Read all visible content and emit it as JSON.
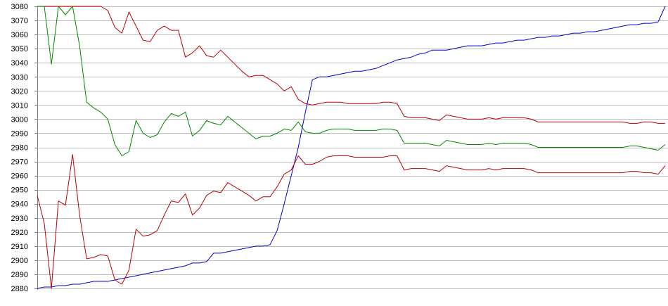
{
  "chart_data": {
    "type": "line",
    "title": "",
    "xlabel": "",
    "ylabel": "",
    "ylim": [
      2880,
      3080
    ],
    "yticks": [
      2880,
      2890,
      2900,
      2910,
      2920,
      2930,
      2940,
      2950,
      2960,
      2970,
      2980,
      2990,
      3000,
      3010,
      3020,
      3030,
      3040,
      3050,
      3060,
      3070,
      3080
    ],
    "grid": true,
    "legend": "none",
    "x": [
      0,
      1,
      2,
      3,
      4,
      5,
      6,
      7,
      8,
      9,
      10,
      11,
      12,
      13,
      14,
      15,
      16,
      17,
      18,
      19,
      20,
      21,
      22,
      23,
      24,
      25,
      26,
      27,
      28,
      29,
      30,
      31,
      32,
      33,
      34,
      35,
      36,
      37,
      38,
      39,
      40,
      41,
      42,
      43,
      44,
      45,
      46,
      47,
      48,
      49,
      50,
      51,
      52,
      53,
      54,
      55,
      56,
      57,
      58,
      59,
      60,
      61,
      62,
      63,
      64,
      65,
      66,
      67,
      68,
      69,
      70,
      71,
      72,
      73,
      74,
      75,
      76,
      77,
      78,
      79,
      80,
      81,
      82,
      83,
      84,
      85,
      86,
      87,
      88,
      89
    ],
    "series": [
      {
        "color": "#0000cc",
        "values": [
          2880,
          2881,
          2881,
          2882,
          2882,
          2883,
          2883,
          2884,
          2885,
          2885,
          2885,
          2886,
          2887,
          2888,
          2889,
          2890,
          2891,
          2892,
          2893,
          2894,
          2895,
          2896,
          2898,
          2898,
          2899,
          2905,
          2905,
          2906,
          2907,
          2908,
          2909,
          2910,
          2910,
          2911,
          2921,
          2940,
          2960,
          2980,
          3005,
          3028,
          3030,
          3030,
          3031,
          3032,
          3033,
          3034,
          3034,
          3035,
          3036,
          3038,
          3040,
          3042,
          3043,
          3044,
          3046,
          3047,
          3049,
          3049,
          3049,
          3050,
          3051,
          3052,
          3052,
          3052,
          3053,
          3054,
          3054,
          3055,
          3056,
          3056,
          3057,
          3058,
          3058,
          3059,
          3059,
          3060,
          3061,
          3061,
          3062,
          3062,
          3063,
          3064,
          3065,
          3066,
          3067,
          3067,
          3068,
          3068,
          3069,
          3080
        ]
      },
      {
        "color": "#bb0000",
        "values": [
          3080,
          3080,
          3080,
          3080,
          3080,
          3080,
          3080,
          3080,
          3080,
          3080,
          3077,
          3065,
          3061,
          3076,
          3066,
          3056,
          3055,
          3063,
          3066,
          3063,
          3063,
          3044,
          3047,
          3052,
          3045,
          3044,
          3049,
          3044,
          3039,
          3034,
          3030,
          3031,
          3031,
          3028,
          3025,
          3020,
          3023,
          3014,
          3011,
          3010,
          3011,
          3012,
          3012,
          3012,
          3011,
          3011,
          3011,
          3011,
          3011,
          3012,
          3012,
          3011,
          3002,
          3001,
          3001,
          3001,
          3000,
          2999,
          3003,
          3002,
          3001,
          3000,
          3000,
          3000,
          3001,
          3000,
          3001,
          3001,
          3001,
          3001,
          3000,
          2998,
          2998,
          2998,
          2998,
          2998,
          2998,
          2998,
          2998,
          2998,
          2998,
          2998,
          2998,
          2998,
          2997,
          2997,
          2998,
          2998,
          2997,
          2997
        ]
      },
      {
        "color": "#008800",
        "values": [
          3080,
          3080,
          3039,
          3080,
          3074,
          3080,
          3052,
          3012,
          3008,
          3005,
          3000,
          2982,
          2974,
          2977,
          2999,
          2990,
          2987,
          2989,
          2998,
          3004,
          3002,
          3005,
          2988,
          2992,
          2999,
          2997,
          2996,
          3002,
          2998,
          2994,
          2990,
          2986,
          2988,
          2988,
          2990,
          2993,
          2992,
          2998,
          2991,
          2990,
          2990,
          2992,
          2993,
          2993,
          2993,
          2992,
          2992,
          2992,
          2992,
          2993,
          2993,
          2992,
          2983,
          2983,
          2983,
          2983,
          2982,
          2981,
          2985,
          2984,
          2983,
          2982,
          2982,
          2982,
          2983,
          2982,
          2983,
          2983,
          2983,
          2983,
          2982,
          2980,
          2980,
          2980,
          2980,
          2980,
          2980,
          2980,
          2980,
          2980,
          2980,
          2980,
          2980,
          2980,
          2981,
          2981,
          2980,
          2979,
          2978,
          2982
        ]
      },
      {
        "color": "#bb0000",
        "values": [
          2946,
          2926,
          2880,
          2942,
          2939,
          2975,
          2932,
          2901,
          2902,
          2904,
          2903,
          2886,
          2883,
          2893,
          2922,
          2917,
          2918,
          2921,
          2932,
          2942,
          2941,
          2947,
          2932,
          2937,
          2946,
          2949,
          2948,
          2955,
          2952,
          2949,
          2946,
          2942,
          2945,
          2945,
          2952,
          2961,
          2964,
          2974,
          2968,
          2968,
          2970,
          2973,
          2974,
          2974,
          2974,
          2973,
          2973,
          2973,
          2973,
          2973,
          2974,
          2974,
          2964,
          2965,
          2965,
          2965,
          2964,
          2963,
          2967,
          2966,
          2965,
          2964,
          2964,
          2964,
          2965,
          2964,
          2965,
          2965,
          2965,
          2965,
          2964,
          2962,
          2962,
          2962,
          2962,
          2962,
          2962,
          2962,
          2962,
          2962,
          2962,
          2962,
          2962,
          2962,
          2963,
          2963,
          2962,
          2962,
          2961,
          2967
        ]
      }
    ]
  }
}
